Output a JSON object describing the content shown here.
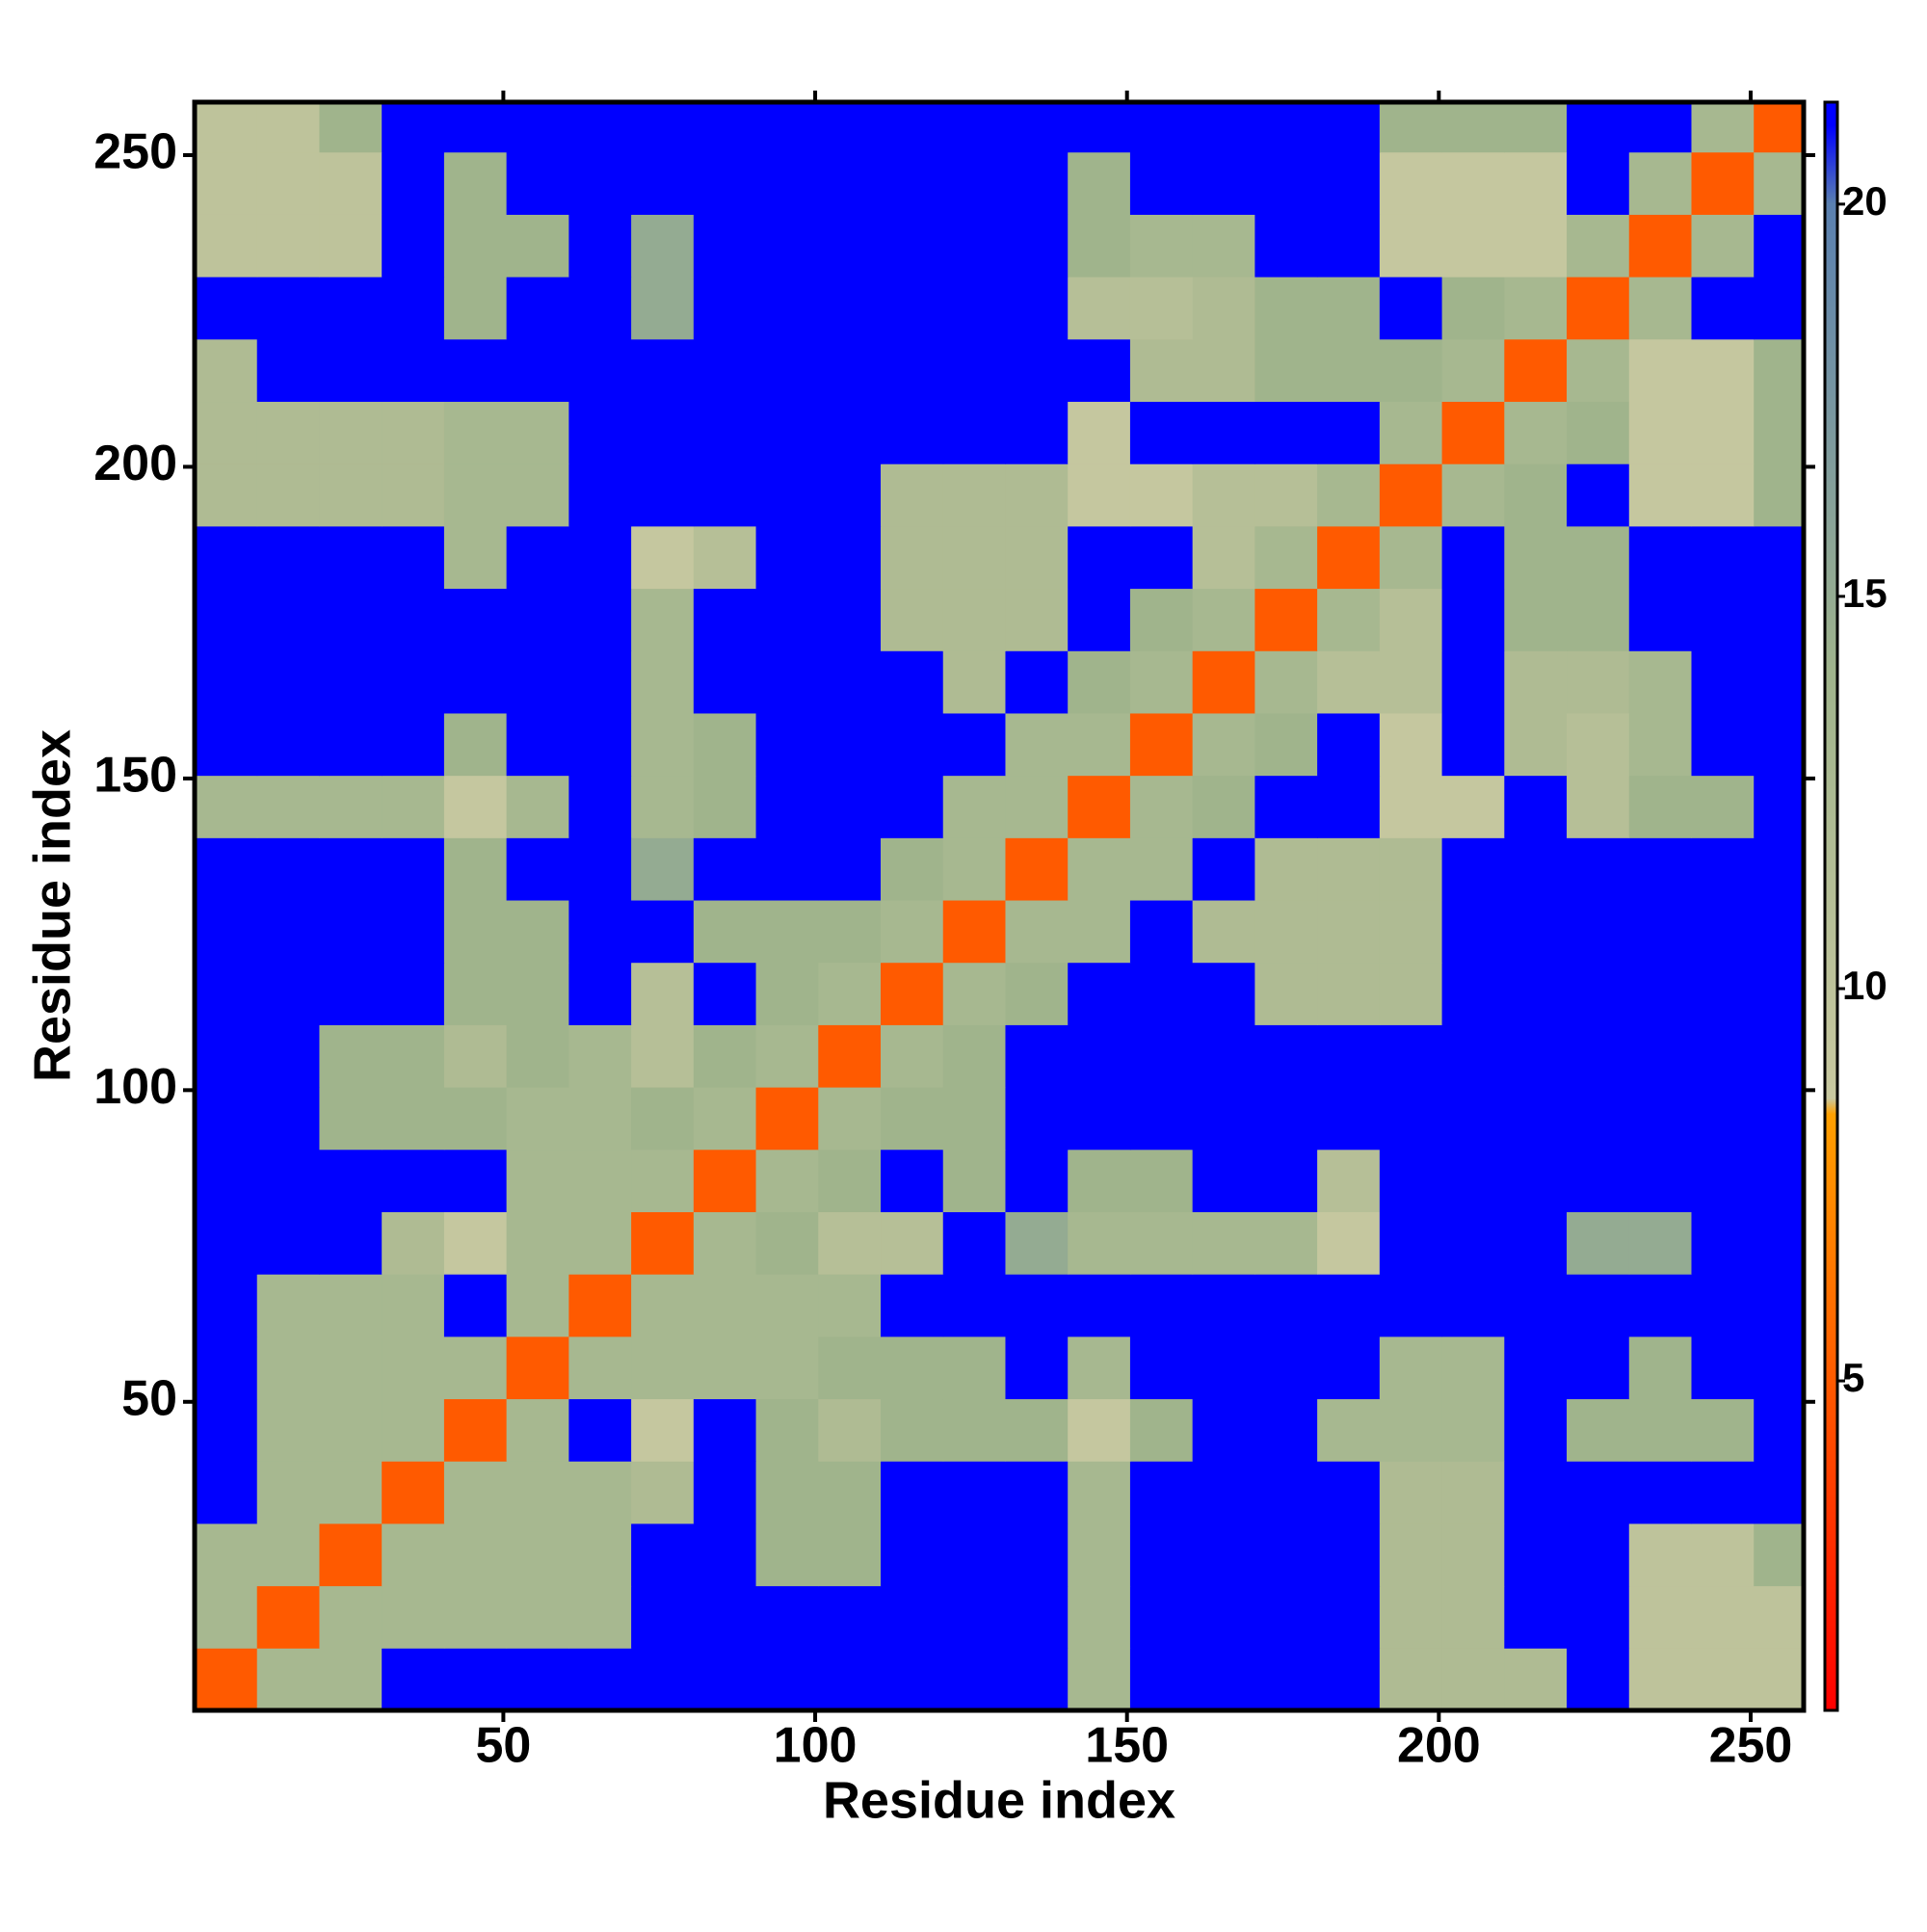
{
  "chart_data": {
    "type": "heatmap",
    "x_label": "Residue index",
    "y_label": "Residue index",
    "x_bins": [
      0.5,
      10.5,
      20.5,
      30.5,
      40.5,
      50.5,
      60.5,
      70.5,
      80.5,
      90.5,
      100.5,
      110.5,
      120.5,
      130.5,
      140.5,
      150.5,
      160.5,
      170.5,
      180.5,
      190.5,
      200.5,
      210.5,
      220.5,
      230.5,
      240.5,
      250.5,
      258.5
    ],
    "y_bins": [
      0.5,
      10.5,
      20.5,
      30.5,
      40.5,
      50.5,
      60.5,
      70.5,
      80.5,
      90.5,
      100.5,
      110.5,
      120.5,
      130.5,
      140.5,
      150.5,
      160.5,
      170.5,
      180.5,
      190.5,
      200.5,
      210.5,
      220.5,
      230.5,
      240.5,
      250.5,
      258.5
    ],
    "xlim": [
      0.5,
      258.5
    ],
    "ylim": [
      0.5,
      258.5
    ],
    "xticks": [
      50,
      100,
      150,
      200,
      250
    ],
    "yticks": [
      50,
      100,
      150,
      200,
      250
    ],
    "colorbar_lim": [
      0.8,
      21.3
    ],
    "colorbar_ticks": [
      5,
      10,
      15,
      20
    ],
    "colorscale": [
      [
        0.8,
        "#ff0000"
      ],
      [
        4.5,
        "#ff5000"
      ],
      [
        8.4,
        "#ffa000"
      ],
      [
        8.6,
        "#c8c8a0"
      ],
      [
        14,
        "#a0b48c"
      ],
      [
        20,
        "#5a80b0"
      ],
      [
        21,
        "#0000ff"
      ],
      [
        21.3,
        "#0000ff"
      ]
    ],
    "z": [
      [
        5,
        13,
        13,
        21,
        21,
        21,
        21,
        21,
        21,
        21,
        21,
        21,
        21,
        21,
        13,
        21,
        21,
        21,
        21,
        12,
        12,
        12,
        21,
        10,
        10,
        10
      ],
      [
        13,
        5,
        13,
        13,
        13,
        13,
        13,
        21,
        21,
        21,
        21,
        21,
        21,
        21,
        13,
        21,
        21,
        21,
        21,
        12,
        12,
        21,
        21,
        10,
        10,
        10
      ],
      [
        13,
        13,
        5,
        13,
        13,
        13,
        13,
        21,
        21,
        14,
        14,
        21,
        21,
        21,
        13,
        21,
        21,
        21,
        21,
        12,
        12,
        21,
        21,
        10,
        10,
        14
      ],
      [
        21,
        13,
        13,
        5,
        13,
        13,
        13,
        12,
        21,
        14,
        14,
        21,
        21,
        21,
        13,
        21,
        21,
        21,
        21,
        12,
        12,
        21,
        21,
        21,
        21,
        21
      ],
      [
        21,
        13,
        13,
        13,
        5,
        13,
        21,
        9,
        21,
        14,
        12,
        14,
        14,
        14,
        9,
        14,
        21,
        21,
        13,
        13,
        13,
        21,
        14,
        14,
        14,
        21
      ],
      [
        21,
        13,
        13,
        13,
        13,
        5,
        13,
        13,
        13,
        13,
        14,
        14,
        14,
        21,
        13,
        21,
        21,
        21,
        21,
        13,
        13,
        21,
        21,
        14,
        21,
        21
      ],
      [
        21,
        13,
        13,
        13,
        21,
        13,
        5,
        13,
        13,
        13,
        13,
        21,
        21,
        21,
        21,
        21,
        21,
        21,
        21,
        21,
        21,
        21,
        21,
        21,
        21,
        21
      ],
      [
        21,
        21,
        21,
        12,
        9,
        13,
        13,
        5,
        13,
        14,
        11,
        11,
        21,
        15,
        13,
        13,
        13,
        13,
        9,
        21,
        21,
        21,
        15,
        15,
        21,
        21
      ],
      [
        21,
        21,
        21,
        21,
        21,
        13,
        13,
        13,
        5,
        13,
        14,
        21,
        14,
        21,
        14,
        14,
        21,
        21,
        11,
        21,
        21,
        21,
        21,
        21,
        21,
        21
      ],
      [
        21,
        21,
        14,
        14,
        14,
        13,
        13,
        14,
        13,
        5,
        13,
        14,
        14,
        21,
        21,
        21,
        21,
        21,
        21,
        21,
        21,
        21,
        21,
        21,
        21,
        21
      ],
      [
        21,
        21,
        14,
        14,
        12,
        14,
        13,
        11,
        14,
        13,
        5,
        13,
        14,
        21,
        21,
        21,
        21,
        21,
        21,
        21,
        21,
        21,
        21,
        21,
        21,
        21
      ],
      [
        21,
        21,
        21,
        21,
        14,
        14,
        21,
        11,
        21,
        14,
        13,
        5,
        13,
        14,
        21,
        21,
        21,
        12,
        12,
        12,
        21,
        21,
        21,
        21,
        21,
        21
      ],
      [
        21,
        21,
        21,
        21,
        14,
        14,
        21,
        21,
        14,
        14,
        14,
        13,
        5,
        13,
        13,
        21,
        12,
        12,
        12,
        12,
        21,
        21,
        21,
        21,
        21,
        21
      ],
      [
        21,
        21,
        21,
        21,
        14,
        21,
        21,
        15,
        21,
        21,
        21,
        14,
        13,
        5,
        13,
        13,
        21,
        12,
        12,
        12,
        21,
        21,
        21,
        21,
        21,
        21
      ],
      [
        13,
        13,
        13,
        13,
        9,
        13,
        21,
        13,
        14,
        21,
        21,
        21,
        13,
        13,
        5,
        13,
        14,
        21,
        21,
        9,
        9,
        21,
        11,
        14,
        14,
        21
      ],
      [
        21,
        21,
        21,
        21,
        14,
        21,
        21,
        13,
        14,
        21,
        21,
        21,
        21,
        13,
        13,
        5,
        13,
        14,
        21,
        9,
        21,
        12,
        11,
        13,
        21,
        21
      ],
      [
        21,
        21,
        21,
        21,
        21,
        21,
        21,
        13,
        21,
        21,
        21,
        21,
        12,
        21,
        14,
        13,
        5,
        13,
        11,
        11,
        21,
        12,
        12,
        13,
        21,
        21
      ],
      [
        21,
        21,
        21,
        21,
        21,
        21,
        21,
        13,
        21,
        21,
        21,
        12,
        12,
        12,
        21,
        14,
        13,
        5,
        13,
        11,
        21,
        14,
        14,
        21,
        21,
        21
      ],
      [
        21,
        21,
        21,
        21,
        13,
        21,
        21,
        9,
        11,
        21,
        21,
        12,
        12,
        12,
        21,
        21,
        11,
        13,
        5,
        13,
        21,
        14,
        14,
        21,
        21,
        21
      ],
      [
        12,
        12,
        12,
        12,
        13,
        13,
        21,
        21,
        21,
        21,
        21,
        12,
        12,
        12,
        9,
        9,
        11,
        11,
        13,
        5,
        13,
        14,
        21,
        9,
        9,
        14
      ],
      [
        12,
        12,
        12,
        12,
        13,
        13,
        21,
        21,
        21,
        21,
        21,
        21,
        21,
        21,
        9,
        21,
        21,
        21,
        21,
        13,
        5,
        13,
        14,
        9,
        9,
        14
      ],
      [
        12,
        21,
        21,
        21,
        21,
        21,
        21,
        21,
        21,
        21,
        21,
        21,
        21,
        21,
        21,
        12,
        12,
        14,
        14,
        14,
        13,
        5,
        13,
        9,
        9,
        14
      ],
      [
        21,
        21,
        21,
        21,
        14,
        21,
        21,
        15,
        21,
        21,
        21,
        21,
        21,
        21,
        11,
        11,
        12,
        14,
        14,
        21,
        14,
        13,
        5,
        13,
        21,
        21
      ],
      [
        10,
        10,
        10,
        21,
        14,
        14,
        21,
        15,
        21,
        21,
        21,
        21,
        21,
        21,
        14,
        13,
        13,
        21,
        21,
        9,
        9,
        9,
        13,
        5,
        13,
        21
      ],
      [
        10,
        10,
        10,
        21,
        14,
        21,
        21,
        21,
        21,
        21,
        21,
        21,
        21,
        21,
        14,
        21,
        21,
        21,
        21,
        9,
        9,
        9,
        21,
        13,
        5,
        13
      ],
      [
        10,
        10,
        14,
        21,
        21,
        21,
        21,
        21,
        21,
        21,
        21,
        21,
        21,
        21,
        21,
        21,
        21,
        21,
        21,
        14,
        14,
        14,
        21,
        21,
        13,
        5
      ]
    ]
  }
}
